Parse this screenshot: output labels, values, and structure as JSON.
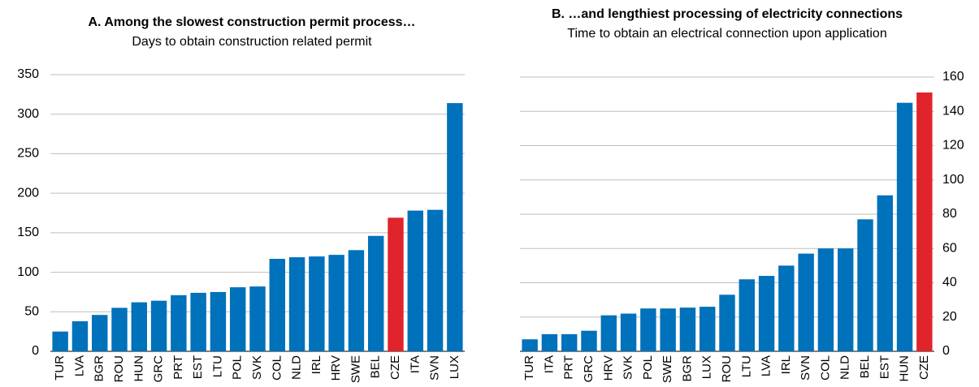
{
  "chart_data": [
    {
      "type": "bar",
      "title": "A. Among the slowest construction permit process…",
      "subtitle": "Days to obtain construction related permit",
      "categories": [
        "TUR",
        "LVA",
        "BGR",
        "ROU",
        "HUN",
        "GRC",
        "PRT",
        "EST",
        "LTU",
        "POL",
        "SVK",
        "COL",
        "NLD",
        "IRL",
        "HRV",
        "SWE",
        "BEL",
        "CZE",
        "ITA",
        "SVN",
        "LUX"
      ],
      "values": [
        25,
        38,
        46,
        55,
        62,
        64,
        71,
        74,
        75,
        81,
        82,
        117,
        119,
        120,
        122,
        128,
        146,
        169,
        178,
        179,
        314
      ],
      "colors": [
        "#0071bb",
        "#0071bb",
        "#0071bb",
        "#0071bb",
        "#0071bb",
        "#0071bb",
        "#0071bb",
        "#0071bb",
        "#0071bb",
        "#0071bb",
        "#0071bb",
        "#0071bb",
        "#0071bb",
        "#0071bb",
        "#0071bb",
        "#0071bb",
        "#0071bb",
        "#e0242b",
        "#0071bb",
        "#0071bb",
        "#0071bb"
      ],
      "ylim": [
        0,
        350
      ],
      "yticks": [
        0,
        50,
        100,
        150,
        200,
        250,
        300,
        350
      ],
      "grid": true,
      "y_axis_position": "left"
    },
    {
      "type": "bar",
      "title": "B. …and lengthiest processing of electricity connections",
      "subtitle": "Time to obtain an electrical connection upon application",
      "categories": [
        "TUR",
        "ITA",
        "PRT",
        "GRC",
        "HRV",
        "SVK",
        "POL",
        "SWE",
        "BGR",
        "LUX",
        "ROU",
        "LTU",
        "LVA",
        "IRL",
        "SVN",
        "COL",
        "NLD",
        "BEL",
        "EST",
        "HUN",
        "CZE"
      ],
      "values": [
        7,
        10,
        10,
        12,
        21,
        22,
        25,
        25,
        25.5,
        26,
        33,
        42,
        44,
        50,
        57,
        60,
        60,
        77,
        91,
        145,
        151
      ],
      "colors": [
        "#0071bb",
        "#0071bb",
        "#0071bb",
        "#0071bb",
        "#0071bb",
        "#0071bb",
        "#0071bb",
        "#0071bb",
        "#0071bb",
        "#0071bb",
        "#0071bb",
        "#0071bb",
        "#0071bb",
        "#0071bb",
        "#0071bb",
        "#0071bb",
        "#0071bb",
        "#0071bb",
        "#0071bb",
        "#0071bb",
        "#e0242b"
      ],
      "ylim": [
        0,
        160
      ],
      "yticks": [
        0,
        20,
        40,
        60,
        80,
        100,
        120,
        140,
        160
      ],
      "grid": true,
      "y_axis_position": "right"
    }
  ]
}
